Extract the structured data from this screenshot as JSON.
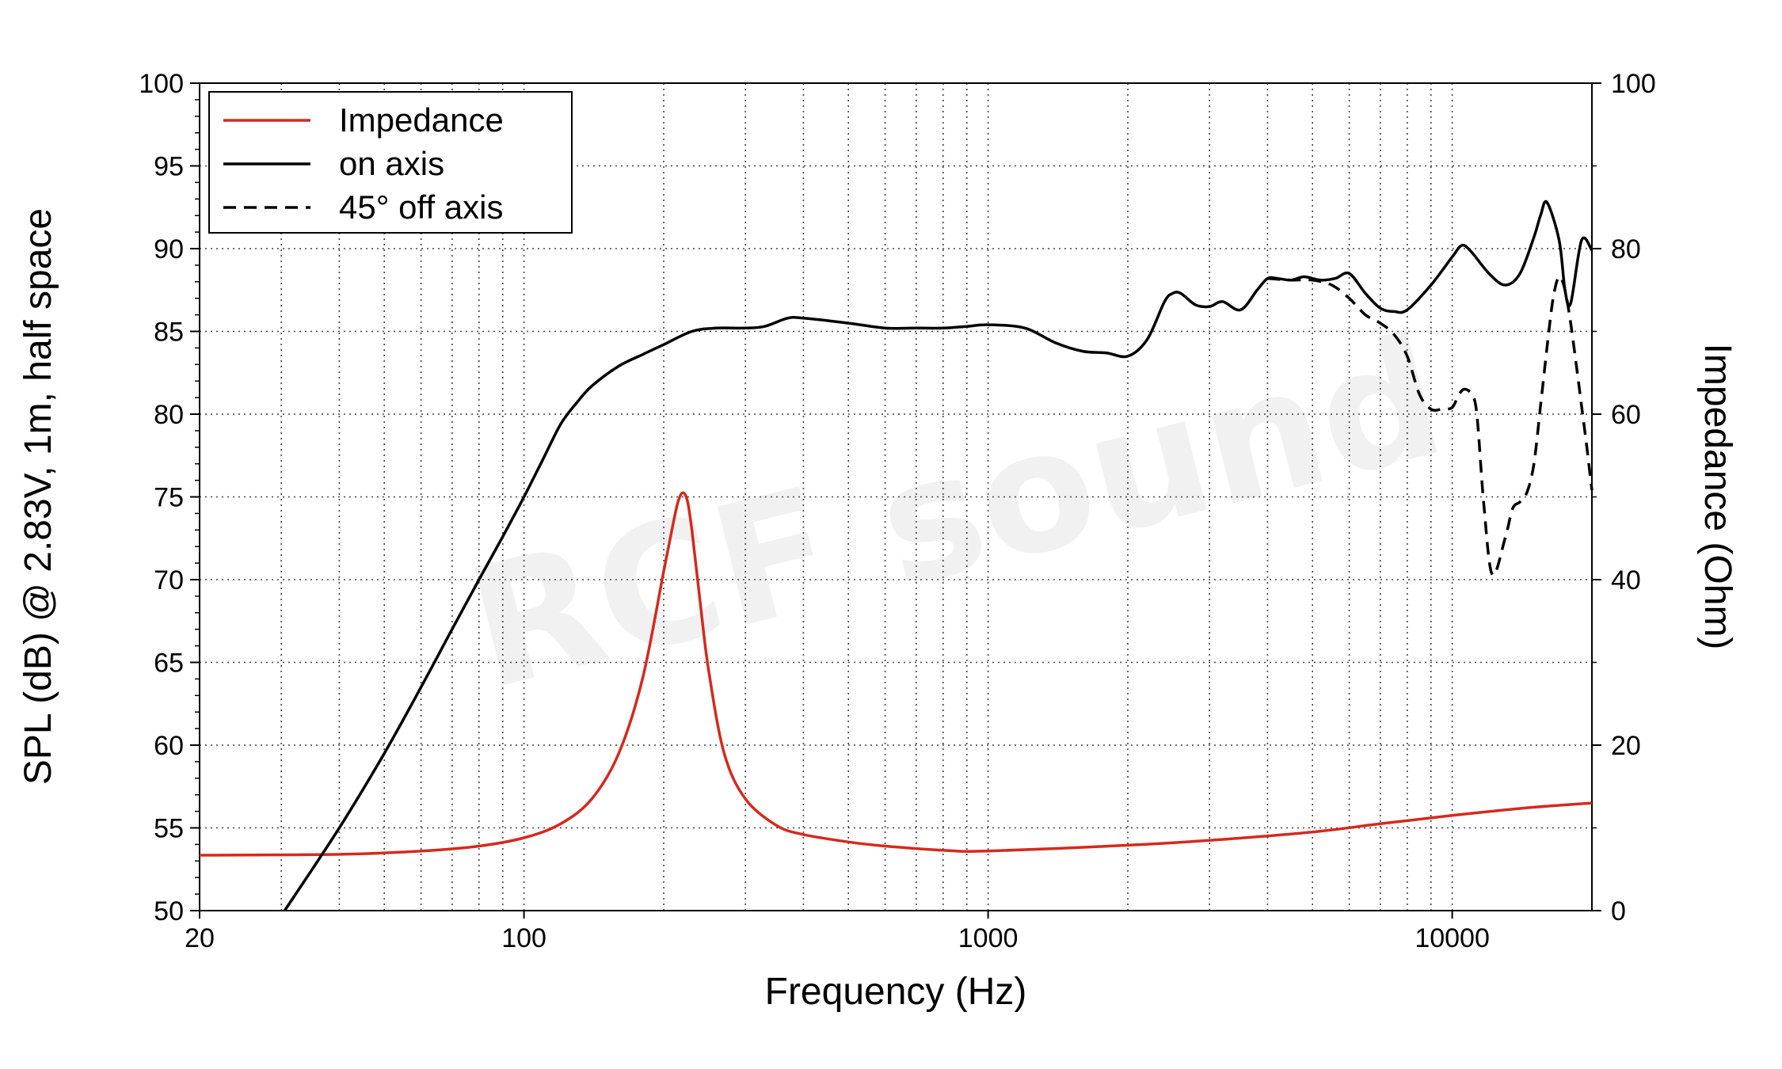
{
  "chart_data": {
    "type": "line",
    "title": "",
    "xlabel": "Frequency (Hz)",
    "ylabel_left": "SPL (dB) @ 2.83V, 1m, half space",
    "ylabel_right": "Impedance (Ohm)",
    "x_scale": "log",
    "xlim": [
      20,
      20000
    ],
    "ylim_left": [
      50,
      100
    ],
    "ylim_right": [
      0,
      100
    ],
    "x_ticks": [
      "20",
      "100",
      "1000",
      "10000"
    ],
    "y_left_ticks": [
      "50",
      "55",
      "60",
      "65",
      "70",
      "75",
      "80",
      "85",
      "90",
      "95",
      "100"
    ],
    "y_right_ticks": [
      "0",
      "20",
      "40",
      "60",
      "80",
      "100"
    ],
    "grid": true,
    "legend_position": "top-left",
    "watermark": "RCF sound",
    "colors": {
      "impedance": "#d42a1e",
      "on_axis": "#000000",
      "off_axis": "#000000"
    },
    "series": [
      {
        "name": "Impedance",
        "axis": "right",
        "style": "solid",
        "x": [
          20,
          40,
          60,
          80,
          100,
          120,
          140,
          160,
          180,
          200,
          210,
          215,
          220,
          225,
          230,
          240,
          250,
          270,
          300,
          350,
          400,
          500,
          600,
          800,
          1000,
          2000,
          3000,
          5000,
          7000,
          10000,
          15000,
          20000
        ],
        "values": [
          6.7,
          6.8,
          7.2,
          7.8,
          8.8,
          10.5,
          13.5,
          19,
          28,
          41,
          47,
          49.5,
          50.5,
          49.5,
          46,
          37,
          29,
          19,
          13.5,
          10.3,
          9.2,
          8.3,
          7.8,
          7.3,
          7.2,
          7.9,
          8.5,
          9.5,
          10.5,
          11.5,
          12.5,
          13
        ]
      },
      {
        "name": "on axis",
        "axis": "left",
        "style": "solid",
        "x": [
          30.5,
          40,
          50,
          60,
          70,
          80,
          90,
          100,
          110,
          120,
          130,
          140,
          160,
          180,
          200,
          230,
          260,
          300,
          330,
          370,
          400,
          500,
          600,
          700,
          800,
          900,
          1000,
          1200,
          1400,
          1600,
          1800,
          2000,
          2200,
          2400,
          2500,
          2600,
          2800,
          3000,
          3200,
          3500,
          3800,
          4000,
          4200,
          4500,
          4800,
          5200,
          5600,
          6000,
          6500,
          7000,
          7500,
          8000,
          9000,
          10000,
          10500,
          11000,
          12000,
          13000,
          14000,
          15000,
          15500,
          16000,
          17000,
          17500,
          18000,
          19000,
          20000
        ],
        "values": [
          50,
          55,
          59.5,
          63.5,
          67,
          70,
          72.6,
          75,
          77.3,
          79.4,
          80.7,
          81.7,
          82.9,
          83.6,
          84.2,
          85,
          85.2,
          85.2,
          85.3,
          85.8,
          85.8,
          85.5,
          85.2,
          85.2,
          85.2,
          85.3,
          85.4,
          85.2,
          84.3,
          83.8,
          83.7,
          83.5,
          84.5,
          86.8,
          87.3,
          87.3,
          86.6,
          86.5,
          86.8,
          86.3,
          87.5,
          88.2,
          88.2,
          88.1,
          88.3,
          88.1,
          88.2,
          88.5,
          87.3,
          86.4,
          86.2,
          86.3,
          87.8,
          89.5,
          90.2,
          89.8,
          88.5,
          87.8,
          88.5,
          90.7,
          92,
          92.8,
          90.5,
          87.5,
          86.7,
          90.5,
          89.9
        ]
      },
      {
        "name": "45° off axis",
        "axis": "left",
        "style": "dashed",
        "x": [
          4000,
          4500,
          5000,
          5500,
          6000,
          6500,
          7000,
          7500,
          8000,
          8500,
          9000,
          9500,
          10000,
          10300,
          10600,
          11000,
          11300,
          11700,
          12200,
          13000,
          13500,
          14000,
          14500,
          15000,
          15500,
          16000,
          16500,
          17000,
          17500,
          18000,
          18500,
          19000,
          19500,
          20000
        ],
        "values": [
          88.2,
          88.1,
          88.1,
          87.8,
          87,
          86,
          85.5,
          84.8,
          83.5,
          81.2,
          80.3,
          80.3,
          80.4,
          81.1,
          81.5,
          81.2,
          80,
          74.5,
          70.3,
          72.5,
          74.3,
          74.7,
          75.3,
          77,
          80.5,
          84,
          87,
          88.3,
          87.5,
          85.5,
          83,
          80.5,
          78,
          75.4
        ]
      }
    ]
  }
}
